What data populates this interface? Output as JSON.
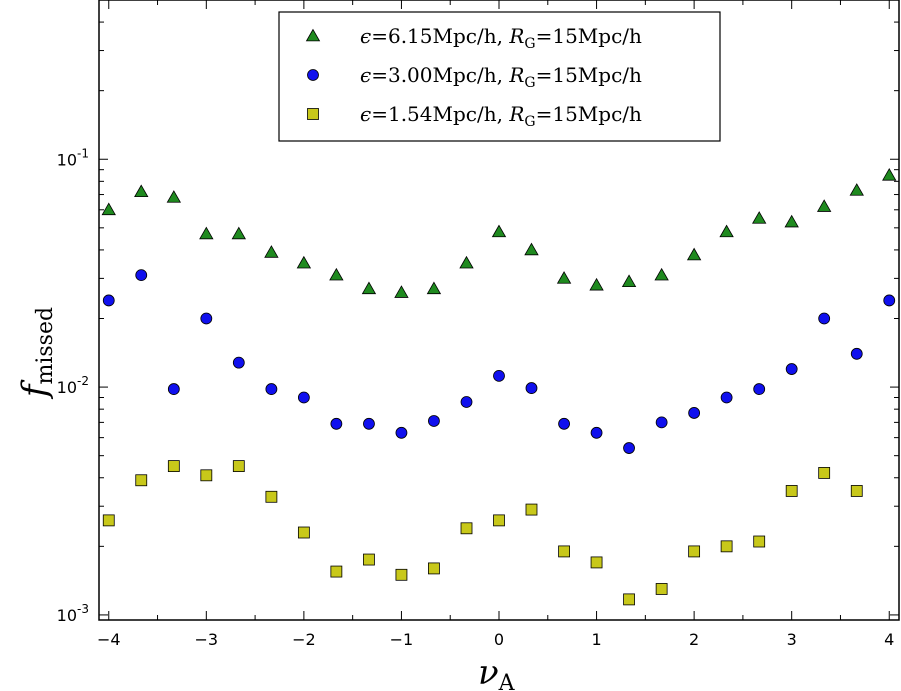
{
  "chart_data": {
    "type": "scatter",
    "xlabel": "ν",
    "xlabel_sub": "A",
    "ylabel": "f",
    "ylabel_sub": "missed",
    "xlim": [
      -4.1,
      4.1
    ],
    "ylim": [
      0.00095,
      0.5
    ],
    "yscale": "log",
    "x_ticks": [
      -4,
      -3,
      -2,
      -1,
      0,
      1,
      2,
      3,
      4
    ],
    "x_tick_labels": [
      "−4",
      "−3",
      "−2",
      "−1",
      "0",
      "1",
      "2",
      "3",
      "4"
    ],
    "y_ticks": [
      {
        "value": 0.1,
        "base": "10",
        "exp": "-1"
      },
      {
        "value": 0.01,
        "base": "10",
        "exp": "-2"
      },
      {
        "value": 0.001,
        "base": "10",
        "exp": "-3"
      }
    ],
    "grid": false,
    "legend_position": "top-center",
    "x": [
      -4.0,
      -3.667,
      -3.333,
      -3.0,
      -2.667,
      -2.333,
      -2.0,
      -1.667,
      -1.333,
      -1.0,
      -0.667,
      -0.333,
      0.0,
      0.333,
      0.667,
      1.0,
      1.333,
      1.667,
      2.0,
      2.333,
      2.667,
      3.0,
      3.333,
      3.667,
      4.0
    ],
    "series": [
      {
        "name": "eps615",
        "marker": "triangle",
        "color": "#1f8a1f",
        "label": {
          "eps_val": "6.15",
          "r_val": "15"
        },
        "values": [
          0.06,
          0.072,
          0.068,
          0.047,
          0.047,
          0.039,
          0.035,
          0.031,
          0.027,
          0.026,
          0.027,
          0.035,
          0.048,
          0.04,
          0.03,
          0.028,
          0.029,
          0.031,
          0.038,
          0.048,
          0.055,
          0.053,
          0.062,
          0.073,
          0.085
        ]
      },
      {
        "name": "eps300",
        "marker": "circle",
        "color": "#1010ee",
        "label": {
          "eps_val": "3.00",
          "r_val": "15"
        },
        "values": [
          0.024,
          0.031,
          0.0098,
          0.02,
          0.0128,
          0.0098,
          0.009,
          0.0069,
          0.0069,
          0.0063,
          0.0071,
          0.0086,
          0.0112,
          0.0099,
          0.0069,
          0.0063,
          0.0054,
          0.007,
          0.0077,
          0.009,
          0.0098,
          0.012,
          0.02,
          0.014,
          0.024
        ]
      },
      {
        "name": "eps154",
        "marker": "square",
        "color": "#c8c81a",
        "label": {
          "eps_val": "1.54",
          "r_val": "15"
        },
        "values": [
          0.0026,
          0.0039,
          0.0045,
          0.0041,
          0.0045,
          0.0033,
          0.0023,
          0.00155,
          0.00175,
          0.0015,
          0.0016,
          0.0024,
          0.0026,
          0.0029,
          0.0019,
          0.0017,
          0.00117,
          0.0013,
          0.0019,
          0.002,
          0.0021,
          0.0035,
          0.0042,
          0.0035,
          null
        ]
      }
    ],
    "legend_text": {
      "eps_sym": "ϵ",
      "unit": "Mpc/h",
      "r_sym": "R",
      "r_sub": "G",
      "eq": "="
    }
  }
}
